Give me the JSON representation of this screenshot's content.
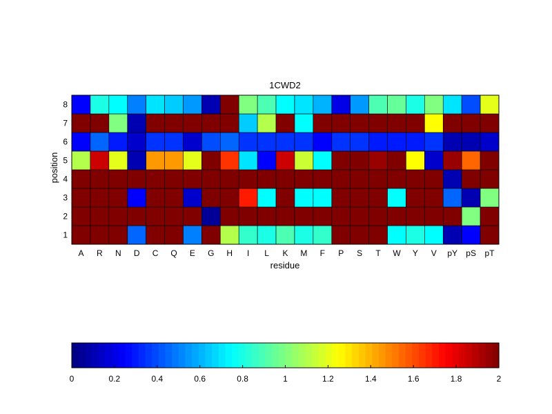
{
  "chart_data": {
    "type": "heatmap",
    "title": "1CWD2",
    "xlabel": "residue",
    "ylabel": "position",
    "x_categories": [
      "A",
      "R",
      "N",
      "D",
      "C",
      "Q",
      "E",
      "G",
      "H",
      "I",
      "L",
      "K",
      "M",
      "F",
      "P",
      "S",
      "T",
      "W",
      "Y",
      "V",
      "pY",
      "pS",
      "pT"
    ],
    "y_categories": [
      "1",
      "2",
      "3",
      "4",
      "5",
      "6",
      "7",
      "8"
    ],
    "values": [
      [
        2,
        2,
        2,
        0.45,
        2,
        2,
        0.5,
        2,
        1.1,
        0.85,
        0.8,
        0.9,
        0.8,
        0.85,
        2,
        2,
        2,
        0.75,
        0.8,
        0.75,
        0.1,
        0.25,
        2
      ],
      [
        2,
        2,
        2,
        2,
        2,
        2,
        2,
        0.05,
        2,
        2,
        2,
        2,
        2,
        2,
        2,
        2,
        2,
        2,
        2,
        2,
        2,
        1.0,
        2
      ],
      [
        2,
        2,
        2,
        0.25,
        2,
        2,
        0.15,
        2,
        2,
        1.7,
        0.75,
        2,
        0.75,
        0.75,
        2,
        2,
        2,
        0.75,
        2,
        2,
        0.45,
        0.1,
        1.0
      ],
      [
        2,
        2,
        2,
        2,
        2,
        2,
        2,
        2,
        2,
        2,
        2,
        2,
        2,
        2,
        2,
        2,
        2,
        2,
        2,
        2,
        0.1,
        2,
        2
      ],
      [
        1.1,
        1.85,
        1.2,
        0.1,
        1.45,
        1.45,
        1.2,
        2,
        1.65,
        0.7,
        0.25,
        1.85,
        1.15,
        0.75,
        2,
        2,
        1.95,
        2,
        1.25,
        0.15,
        1.95,
        1.55,
        2
      ],
      [
        0.25,
        0.45,
        0.3,
        0.15,
        0.35,
        0.35,
        0.15,
        0.4,
        0.45,
        0.35,
        0.35,
        0.35,
        0.35,
        0.25,
        0.35,
        0.35,
        0.3,
        0.3,
        0.3,
        0.35,
        0.1,
        0.1,
        0.15
      ],
      [
        2,
        2,
        1.0,
        0.1,
        2,
        2,
        2,
        2,
        2,
        0.65,
        1.1,
        2,
        0.75,
        2,
        2,
        2,
        2,
        2,
        2,
        1.25,
        2,
        2,
        2
      ],
      [
        0.25,
        0.8,
        0.75,
        0.5,
        0.7,
        0.65,
        0.55,
        0.1,
        2,
        1.0,
        0.9,
        0.75,
        0.7,
        0.6,
        0.2,
        0.55,
        0.9,
        0.95,
        0.8,
        1.0,
        0.7,
        0.4,
        1.2
      ]
    ],
    "zlim": [
      0,
      2
    ],
    "colormap": "jet",
    "colorbar": {
      "orientation": "horizontal",
      "position": "bottom",
      "ticks": [
        "0",
        "0.2",
        "0.4",
        "0.6",
        "0.8",
        "1",
        "1.2",
        "1.4",
        "1.6",
        "1.8",
        "2"
      ]
    },
    "grid": false
  }
}
